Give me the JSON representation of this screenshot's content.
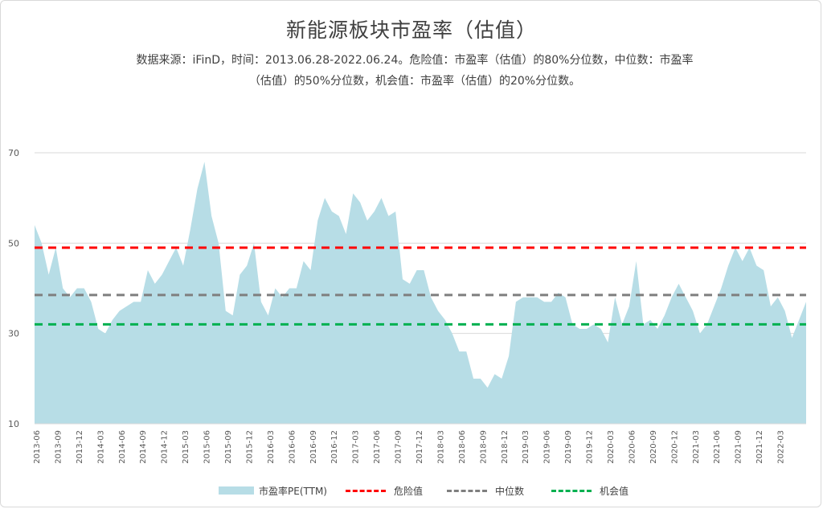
{
  "chart_data": {
    "type": "area",
    "title": "新能源板块市盈率（估值）",
    "subtitle_lines": [
      "数据来源：iFinD，时间：2013.06.28-2022.06.24。危险值：市盈率（估值）的80%分位数，中位数：市盈率",
      "（估值）的50%分位数，机会值：市盈率（估值）的20%分位数。"
    ],
    "ylim": [
      10,
      70
    ],
    "yticks": [
      10,
      30,
      50,
      70
    ],
    "grid": true,
    "legend_position": "bottom",
    "x_tick_labels": [
      "2013-06",
      "2013-09",
      "2013-12",
      "2014-03",
      "2014-06",
      "2014-09",
      "2014-12",
      "2015-03",
      "2015-06",
      "2015-09",
      "2015-12",
      "2016-03",
      "2016-06",
      "2016-09",
      "2016-12",
      "2017-03",
      "2017-06",
      "2017-09",
      "2017-12",
      "2018-03",
      "2018-06",
      "2018-09",
      "2018-12",
      "2019-03",
      "2019-06",
      "2019-09",
      "2019-12",
      "2020-03",
      "2020-06",
      "2020-09",
      "2020-12",
      "2021-03",
      "2021-06",
      "2021-09",
      "2021-12",
      "2022-03"
    ],
    "series": [
      {
        "name": "市盈率PE(TTM)",
        "kind": "area",
        "color": "#b7dde6",
        "values": [
          54,
          50,
          43,
          49,
          40,
          38,
          40,
          40,
          37,
          31,
          30,
          33,
          35,
          36,
          37,
          37,
          44,
          41,
          43,
          46,
          49,
          45,
          53,
          62,
          68,
          56,
          50,
          35,
          34,
          43,
          45,
          50,
          37,
          34,
          40,
          38,
          40,
          40,
          46,
          44,
          55,
          60,
          57,
          56,
          52,
          61,
          59,
          55,
          57,
          60,
          56,
          57,
          42,
          41,
          44,
          44,
          38,
          35,
          33,
          30,
          26,
          26,
          20,
          20,
          18,
          21,
          20,
          25,
          37,
          38,
          38,
          38,
          37,
          37,
          39,
          38,
          32,
          31,
          31,
          32,
          31,
          28,
          38,
          32,
          36,
          46,
          32,
          33,
          31,
          34,
          38,
          41,
          38,
          35,
          30,
          32,
          36,
          40,
          45,
          49,
          46,
          49,
          45,
          44,
          36,
          38,
          35,
          29,
          33,
          37
        ]
      },
      {
        "name": "危险值",
        "kind": "hline",
        "value": 49,
        "color": "#ff0000"
      },
      {
        "name": "中位数",
        "kind": "hline",
        "value": 38.5,
        "color": "#7f7f7f"
      },
      {
        "name": "机会值",
        "kind": "hline",
        "value": 32,
        "color": "#00b050"
      }
    ]
  }
}
